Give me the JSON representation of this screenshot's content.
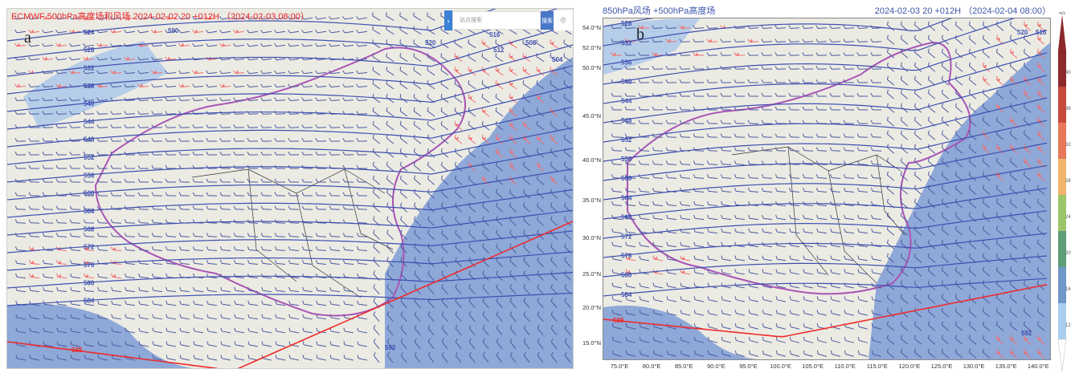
{
  "panel_a": {
    "letter": "a",
    "title": "ECMWF 500hPa高度场和风场 2024-02-02 20 +012H （2024-02-03 08:00）",
    "search": {
      "placeholder": "站点搜索",
      "button": "搜索",
      "toggle_icon": "chevron-right-icon",
      "location_icon": "map-pin-icon"
    },
    "contour_labels": [
      "524",
      "528",
      "532",
      "536",
      "540",
      "544",
      "548",
      "552",
      "556",
      "560",
      "564",
      "568",
      "572",
      "576",
      "580",
      "584",
      "588"
    ],
    "extra_labels": [
      "516",
      "520",
      "508",
      "512",
      "504",
      "592",
      "590"
    ],
    "highlight_contour": "588"
  },
  "panel_b": {
    "letter": "b",
    "title": "850hPa风场 +500hPa高度场",
    "time": "2024-02-03 20 +012H （2024-02-04 08:00）",
    "lat_ticks": [
      "54.0°N",
      "52.0°N",
      "50.0°N",
      "45.0°N",
      "40.0°N",
      "35.0°N",
      "30.0°N",
      "25.0°N",
      "20.0°N",
      "15.0°N"
    ],
    "lon_ticks": [
      "75.0°E",
      "80.0°E",
      "85.0°E",
      "90.0°E",
      "95.0°E",
      "100.0°E",
      "105.0°E",
      "110.0°E",
      "115.0°E",
      "120.0°E",
      "125.0°E",
      "130.0°E",
      "135.0°E",
      "140.0°E"
    ],
    "contour_labels": [
      "528",
      "532",
      "536",
      "540",
      "544",
      "548",
      "552",
      "556",
      "560",
      "564",
      "568",
      "572",
      "576",
      "580",
      "584",
      "588"
    ],
    "extra_labels": [
      "520",
      "516",
      "592"
    ],
    "highlight_contour": "588"
  },
  "colorbar": {
    "unit": "m/s",
    "ticks": [
      "40",
      "36",
      "32",
      "28",
      "24",
      "20",
      "16",
      "12"
    ],
    "colors": [
      "#8b2a2a",
      "#c84a3c",
      "#e8775a",
      "#f0b46a",
      "#9cc56a",
      "#5e9e78",
      "#6f97c8",
      "#a9cdee"
    ]
  },
  "colors": {
    "contour": "#3d4fb0",
    "highlight": "#ee2a2a",
    "border": "#a855b5",
    "land": "#ecebe3",
    "sea": "#8ea8d8",
    "strong_wind": "#f07070"
  }
}
